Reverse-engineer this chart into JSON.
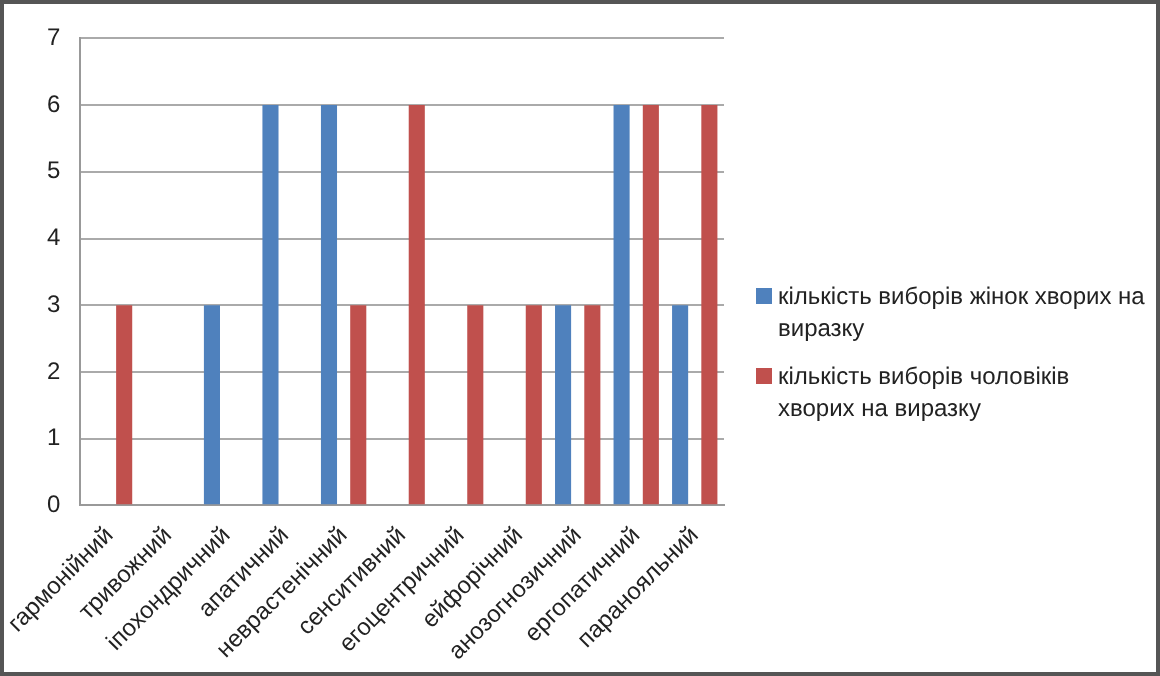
{
  "chart_data": {
    "type": "bar",
    "categories": [
      "гармонійний",
      "тривожний",
      "іпохондричний",
      "апатичний",
      "неврастенічний",
      "сенситивний",
      "егоцентричний",
      "ейфорічний",
      "анозогнозичний",
      "ергопатичний",
      "паранояльний"
    ],
    "series": [
      {
        "name": "кількість виборів жінок хворих на виразку",
        "color": "#4f81bd",
        "values": [
          0,
          0,
          3,
          6,
          6,
          0,
          0,
          0,
          3,
          6,
          3
        ]
      },
      {
        "name": "кількість виборів чоловіків хворих на виразку",
        "color": "#c0504d",
        "values": [
          3,
          0,
          0,
          0,
          3,
          6,
          3,
          3,
          3,
          6,
          6
        ]
      }
    ],
    "ylim": [
      0,
      7
    ],
    "yticks": [
      0,
      1,
      2,
      3,
      4,
      5,
      6,
      7
    ],
    "grid": "y",
    "legend": "right"
  }
}
